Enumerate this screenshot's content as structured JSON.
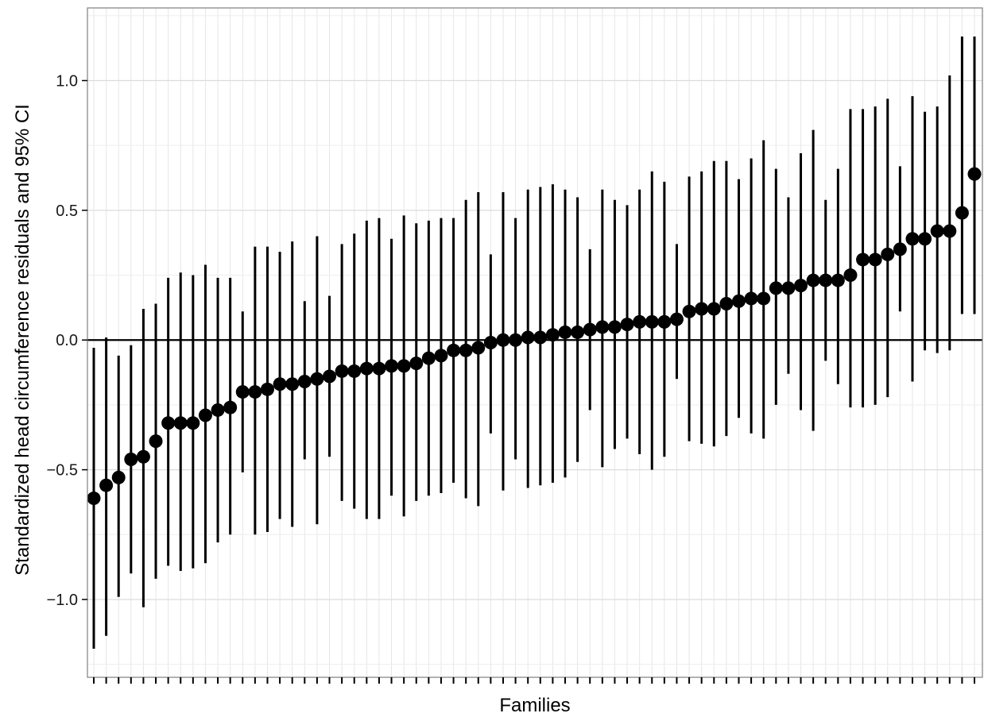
{
  "chart_data": {
    "type": "scatter",
    "title": "",
    "xlabel": "Families",
    "ylabel": "Standardized head circumference residuals and 95% CI",
    "ylim": [
      -1.3,
      1.28
    ],
    "yticks": [
      -1.0,
      -0.5,
      0.0,
      0.5,
      1.0
    ],
    "ytick_labels": [
      "−1.0",
      "−0.5",
      "0.0",
      "0.5",
      "1.0"
    ],
    "grid": true,
    "reference_line_y": 0,
    "x_ticks_labeled": false,
    "series": [
      {
        "estimate": [
          -0.61,
          -0.56,
          -0.53,
          -0.46,
          -0.45,
          -0.39,
          -0.32,
          -0.32,
          -0.32,
          -0.29,
          -0.27,
          -0.26,
          -0.2,
          -0.2,
          -0.19,
          -0.17,
          -0.17,
          -0.16,
          -0.15,
          -0.14,
          -0.12,
          -0.12,
          -0.11,
          -0.11,
          -0.1,
          -0.1,
          -0.09,
          -0.07,
          -0.06,
          -0.04,
          -0.04,
          -0.03,
          -0.01,
          0.0,
          0.0,
          0.01,
          0.01,
          0.02,
          0.03,
          0.03,
          0.04,
          0.05,
          0.05,
          0.06,
          0.07,
          0.07,
          0.07,
          0.08,
          0.11,
          0.12,
          0.12,
          0.14,
          0.15,
          0.16,
          0.16,
          0.2,
          0.2,
          0.21,
          0.23,
          0.23,
          0.23,
          0.25,
          0.31,
          0.31,
          0.33,
          0.35,
          0.39,
          0.39,
          0.42,
          0.42,
          0.49,
          0.64
        ],
        "lower": [
          -1.19,
          -1.14,
          -0.99,
          -0.9,
          -1.03,
          -0.92,
          -0.87,
          -0.89,
          -0.88,
          -0.86,
          -0.78,
          -0.75,
          -0.51,
          -0.75,
          -0.74,
          -0.69,
          -0.72,
          -0.46,
          -0.71,
          -0.45,
          -0.62,
          -0.65,
          -0.69,
          -0.69,
          -0.6,
          -0.68,
          -0.62,
          -0.6,
          -0.59,
          -0.55,
          -0.61,
          -0.64,
          -0.36,
          -0.58,
          -0.46,
          -0.57,
          -0.56,
          -0.55,
          -0.53,
          -0.47,
          -0.27,
          -0.49,
          -0.42,
          -0.38,
          -0.44,
          -0.5,
          -0.45,
          -0.15,
          -0.39,
          -0.4,
          -0.41,
          -0.37,
          -0.3,
          -0.36,
          -0.38,
          -0.25,
          -0.13,
          -0.27,
          -0.35,
          -0.08,
          -0.17,
          -0.26,
          -0.26,
          -0.25,
          -0.22,
          0.11,
          -0.16,
          -0.04,
          -0.05,
          -0.04,
          0.1,
          0.1
        ],
        "upper": [
          -0.03,
          0.01,
          -0.06,
          -0.02,
          0.12,
          0.14,
          0.24,
          0.26,
          0.25,
          0.29,
          0.24,
          0.24,
          0.11,
          0.36,
          0.36,
          0.34,
          0.38,
          0.15,
          0.4,
          0.17,
          0.37,
          0.41,
          0.46,
          0.47,
          0.39,
          0.48,
          0.45,
          0.46,
          0.47,
          0.47,
          0.54,
          0.57,
          0.33,
          0.57,
          0.47,
          0.58,
          0.59,
          0.6,
          0.58,
          0.55,
          0.35,
          0.58,
          0.54,
          0.52,
          0.58,
          0.65,
          0.61,
          0.37,
          0.63,
          0.65,
          0.69,
          0.69,
          0.62,
          0.7,
          0.77,
          0.66,
          0.55,
          0.72,
          0.81,
          0.54,
          0.66,
          0.89,
          0.89,
          0.9,
          0.93,
          0.67,
          0.94,
          0.88,
          0.9,
          1.02,
          1.17,
          1.17
        ]
      }
    ]
  }
}
